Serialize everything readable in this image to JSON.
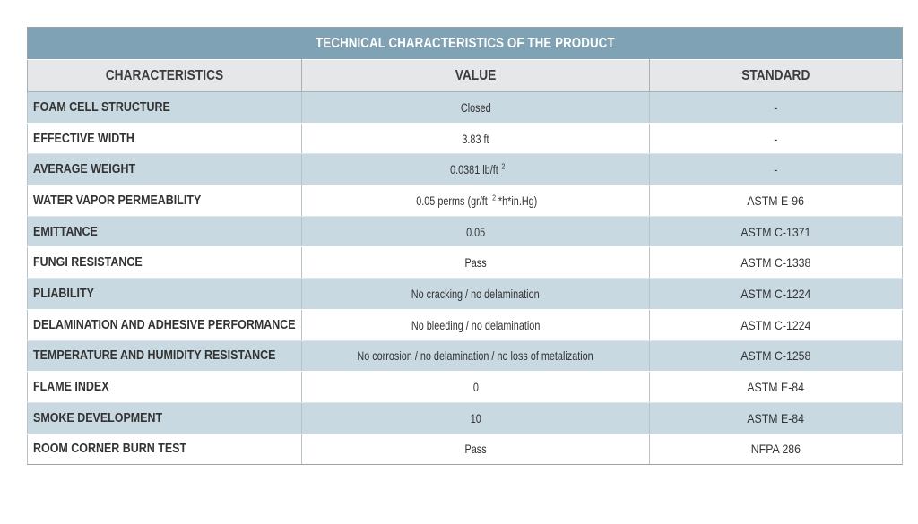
{
  "table": {
    "title": "TECHNICAL CHARACTERISTICS OF THE PRODUCT",
    "headers": {
      "characteristics": "CHARACTERISTICS",
      "value": "VALUE",
      "standard": "STANDARD"
    },
    "rows": [
      {
        "name": "FOAM CELL STRUCTURE",
        "value": "Closed",
        "standard": "-"
      },
      {
        "name": "EFFECTIVE WIDTH",
        "value": "3.83 ft",
        "standard": "-"
      },
      {
        "name": "AVERAGE WEIGHT",
        "value": "0.0381 lb/ft",
        "value_sup": "2",
        "standard": "-"
      },
      {
        "name": "WATER VAPOR PERMEABILITY",
        "value": "0.05 perms (gr/ft",
        "value_sup": "2",
        "value_tail": "*h*in.Hg)",
        "standard": "ASTM E-96"
      },
      {
        "name": "EMITTANCE",
        "value": "0.05",
        "standard": "ASTM C-1371"
      },
      {
        "name": "FUNGI RESISTANCE",
        "value": "Pass",
        "standard": "ASTM C-1338"
      },
      {
        "name": "PLIABILITY",
        "value": "No cracking / no delamination",
        "standard": "ASTM C-1224"
      },
      {
        "name": "DELAMINATION AND ADHESIVE PERFORMANCE",
        "value": "No bleeding / no delamination",
        "standard": "ASTM C-1224"
      },
      {
        "name": "TEMPERATURE AND HUMIDITY RESISTANCE",
        "value": "No corrosion / no delamination / no loss of metalization",
        "standard": "ASTM C-1258"
      },
      {
        "name": "FLAME INDEX",
        "value": "0",
        "standard": "ASTM E-84"
      },
      {
        "name": "SMOKE DEVELOPMENT",
        "value": "10",
        "standard": "ASTM E-84"
      },
      {
        "name": "ROOM CORNER BURN TEST",
        "value": "Pass",
        "standard": "NFPA 286"
      }
    ]
  },
  "colors": {
    "title_bg": "#7fa3b5",
    "header_bg": "#e6e7e8",
    "stripe_bg": "#c8d9e2",
    "text": "#333333"
  }
}
